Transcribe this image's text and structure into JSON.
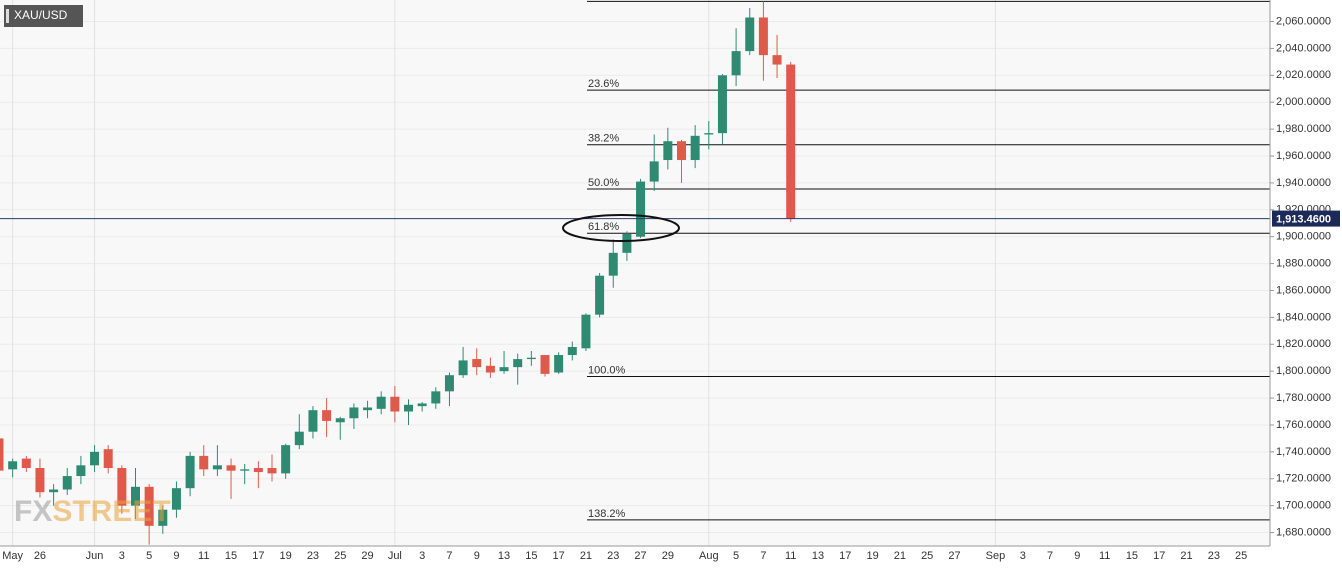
{
  "chart_data": {
    "type": "candlestick",
    "title": "XAU/USD",
    "watermark": [
      "FX",
      "STREET"
    ],
    "categories": [
      null,
      "May",
      null,
      "26",
      null,
      null,
      null,
      "Jun",
      null,
      "3",
      null,
      "5",
      null,
      "9",
      null,
      "11",
      null,
      "15",
      null,
      "17",
      null,
      "19",
      null,
      "23",
      null,
      "25",
      null,
      "29",
      null,
      "Jul",
      null,
      "3",
      null,
      "7",
      null,
      "9",
      null,
      "13",
      null,
      "15",
      null,
      "17",
      null,
      "21",
      null,
      "23",
      null,
      "27",
      null,
      "29",
      null,
      null,
      "Aug",
      null,
      "5",
      null,
      "7",
      null,
      "11",
      null,
      "13",
      null,
      "17",
      null,
      "19",
      null,
      "21",
      null,
      "25",
      null,
      "27",
      null,
      null,
      "Sep",
      null,
      "3",
      null,
      "7",
      null,
      "9",
      null,
      "11",
      null,
      "15",
      null,
      "17",
      null,
      "21",
      null,
      "23",
      null,
      "25"
    ],
    "open": [
      1750,
      1727,
      1735,
      1728,
      1710,
      1712,
      1722,
      1730,
      1742,
      1728,
      1700,
      1714,
      1685,
      1697,
      1713,
      1737,
      1727,
      1730,
      1726,
      1728,
      1728,
      1724,
      1745,
      1755,
      1771,
      1762,
      1765,
      1771,
      1772,
      1781,
      1770,
      1774,
      1776,
      1785,
      1797,
      1809,
      1804,
      1800,
      1803,
      1809,
      1812,
      1799,
      1812,
      1817,
      1842,
      1871,
      1888,
      1900,
      1941,
      1957,
      1971,
      1957,
      1976,
      1977,
      2020,
      2038,
      2063,
      2035,
      2028,
      null,
      null,
      null,
      null,
      null,
      null,
      null,
      null,
      null,
      null,
      null,
      null,
      null,
      null,
      null,
      null,
      null,
      null,
      null,
      null,
      null,
      null,
      null,
      null,
      null,
      null,
      null,
      null,
      null,
      null,
      null,
      null,
      null
    ],
    "high": [
      1753,
      1735,
      1737,
      1735,
      1716,
      1728,
      1737,
      1745,
      1745,
      1730,
      1728,
      1716,
      1700,
      1718,
      1740,
      1745,
      1745,
      1735,
      1731,
      1733,
      1738,
      1746,
      1768,
      1774,
      1780,
      1766,
      1776,
      1778,
      1785,
      1789,
      1779,
      1777,
      1788,
      1799,
      1818,
      1817,
      1810,
      1815,
      1813,
      1815,
      1812,
      1814,
      1822,
      1843,
      1873,
      1898,
      1904,
      1943,
      1976,
      1981,
      1972,
      1983,
      1986,
      2021,
      2055,
      2070,
      2075,
      2050,
      2030,
      null,
      null,
      null,
      null,
      null,
      null,
      null,
      null,
      null,
      null,
      null,
      null,
      null,
      null,
      null,
      null,
      null,
      null,
      null,
      null,
      null,
      null,
      null,
      null,
      null,
      null,
      null,
      null,
      null,
      null,
      null,
      null,
      null
    ],
    "low": [
      1720,
      1721,
      1725,
      1706,
      1700,
      1708,
      1716,
      1725,
      1724,
      1694,
      1690,
      1671,
      1679,
      1691,
      1707,
      1722,
      1722,
      1705,
      1716,
      1713,
      1718,
      1720,
      1742,
      1750,
      1751,
      1749,
      1757,
      1765,
      1768,
      1762,
      1760,
      1770,
      1772,
      1774,
      1795,
      1797,
      1795,
      1798,
      1790,
      1804,
      1796,
      1798,
      1808,
      1815,
      1840,
      1862,
      1882,
      1899,
      1934,
      1950,
      1940,
      1951,
      1965,
      1969,
      2012,
      2035,
      2016,
      2018,
      1911,
      null,
      null,
      null,
      null,
      null,
      null,
      null,
      null,
      null,
      null,
      null,
      null,
      null,
      null,
      null,
      null,
      null,
      null,
      null,
      null,
      null,
      null,
      null,
      null,
      null,
      null,
      null,
      null,
      null,
      null,
      null,
      null,
      null
    ],
    "close": [
      1726,
      1733,
      1728,
      1710,
      1712,
      1722,
      1730,
      1740,
      1728,
      1700,
      1714,
      1685,
      1697,
      1713,
      1737,
      1727,
      1730,
      1726,
      1727,
      1725,
      1724,
      1745,
      1755,
      1771,
      1763,
      1765,
      1773,
      1773,
      1781,
      1770,
      1775,
      1776,
      1785,
      1797,
      1808,
      1803,
      1799,
      1803,
      1809,
      1810,
      1798,
      1812,
      1818,
      1842,
      1871,
      1888,
      1902,
      1941,
      1956,
      1971,
      1957,
      1975,
      1977,
      2020,
      2038,
      2063,
      2035,
      2028,
      1913.46,
      null,
      null,
      null,
      null,
      null,
      null,
      null,
      null,
      null,
      null,
      null,
      null,
      null,
      null,
      null,
      null,
      null,
      null,
      null,
      null,
      null,
      null,
      null,
      null,
      null,
      null,
      null,
      null,
      null,
      null,
      null,
      null,
      null
    ],
    "up_color": "#2e8b72",
    "down_color": "#de5b4b",
    "fib_high": 2075,
    "fib_levels": [
      {
        "value": 2009,
        "label": "23.6%"
      },
      {
        "value": 1968.4,
        "label": "38.2%"
      },
      {
        "value": 1935.5,
        "label": "50.0%"
      },
      {
        "value": 1902.6,
        "label": "61.8%"
      },
      {
        "value": 1796,
        "label": "100.0%"
      },
      {
        "value": 1689.4,
        "label": "138.2%"
      }
    ],
    "price_line": {
      "value": 1913.46,
      "label": "1,913.4600"
    },
    "ylim": [
      1670,
      2076
    ],
    "yticks": [
      {
        "value": 1680,
        "label": "1,680.0000"
      },
      {
        "value": 1700,
        "label": "1,700.0000"
      },
      {
        "value": 1720,
        "label": "1,720.0000"
      },
      {
        "value": 1740,
        "label": "1,740.0000"
      },
      {
        "value": 1760,
        "label": "1,760.0000"
      },
      {
        "value": 1780,
        "label": "1,780.0000"
      },
      {
        "value": 1800,
        "label": "1,800.0000"
      },
      {
        "value": 1820,
        "label": "1,820.0000"
      },
      {
        "value": 1840,
        "label": "1,840.0000"
      },
      {
        "value": 1860,
        "label": "1,860.0000"
      },
      {
        "value": 1880,
        "label": "1,880.0000"
      },
      {
        "value": 1900,
        "label": "1,900.0000"
      },
      {
        "value": 1920,
        "label": "1,920.0000"
      },
      {
        "value": 1940,
        "label": "1,940.0000"
      },
      {
        "value": 1960,
        "label": "1,960.0000"
      },
      {
        "value": 1980,
        "label": "1,980.0000"
      },
      {
        "value": 2000,
        "label": "2,000.0000"
      },
      {
        "value": 2020,
        "label": "2,020.0000"
      },
      {
        "value": 2040,
        "label": "2,040.0000"
      },
      {
        "value": 2060,
        "label": "2,060.0000"
      }
    ],
    "grid": true
  }
}
